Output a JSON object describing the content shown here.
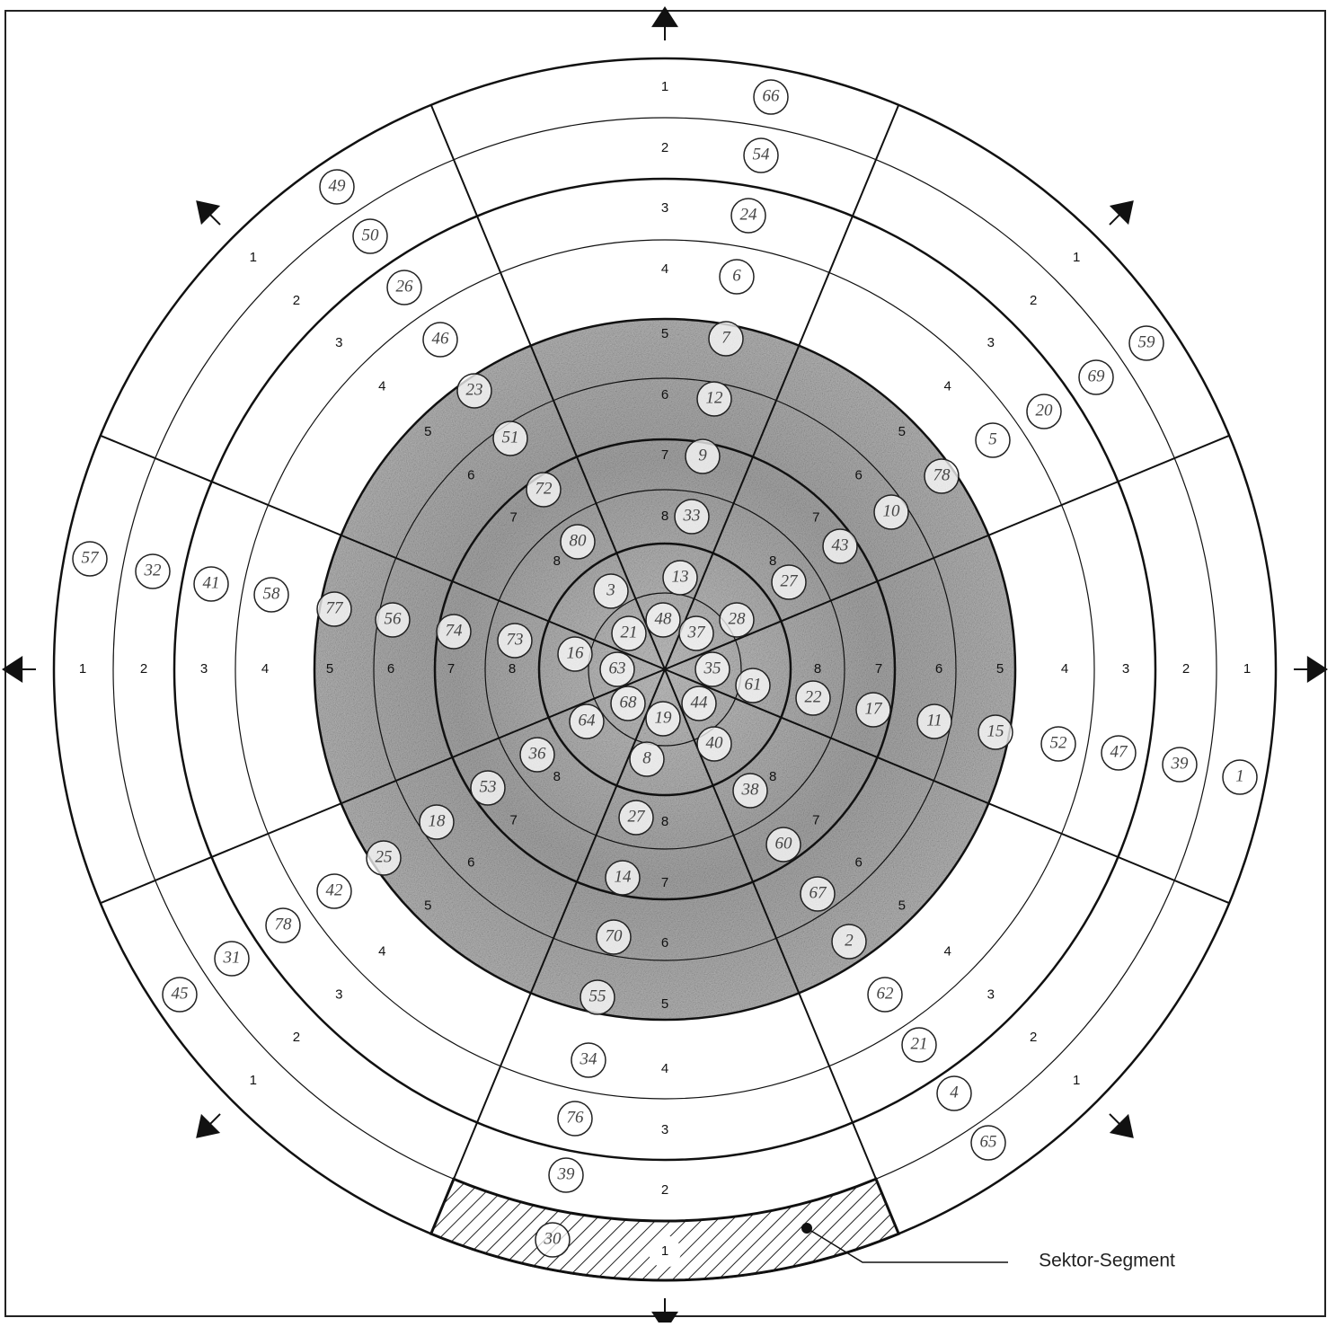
{
  "ring_labels": [
    "1",
    "2",
    "3",
    "4",
    "5",
    "6",
    "7",
    "8"
  ],
  "markers": [
    "66",
    "54",
    "24",
    "6",
    "7",
    "12",
    "9",
    "33",
    "13",
    "48",
    "37",
    "28",
    "27",
    "43",
    "10",
    "78",
    "5",
    "20",
    "69",
    "59",
    "49",
    "50",
    "26",
    "46",
    "23",
    "51",
    "72",
    "80",
    "3",
    "21",
    "57",
    "32",
    "41",
    "58",
    "77",
    "56",
    "74",
    "73",
    "16",
    "63",
    "35",
    "61",
    "22",
    "17",
    "11",
    "15",
    "52",
    "47",
    "39",
    "1",
    "68",
    "64",
    "36",
    "53",
    "18",
    "25",
    "42",
    "78",
    "31",
    "45",
    "19",
    "8",
    "27",
    "14",
    "70",
    "55",
    "34",
    "76",
    "39",
    "30",
    "44",
    "40",
    "38",
    "60",
    "67",
    "2",
    "62",
    "21",
    "4",
    "65"
  ],
  "callout": "Sektor-Segment"
}
